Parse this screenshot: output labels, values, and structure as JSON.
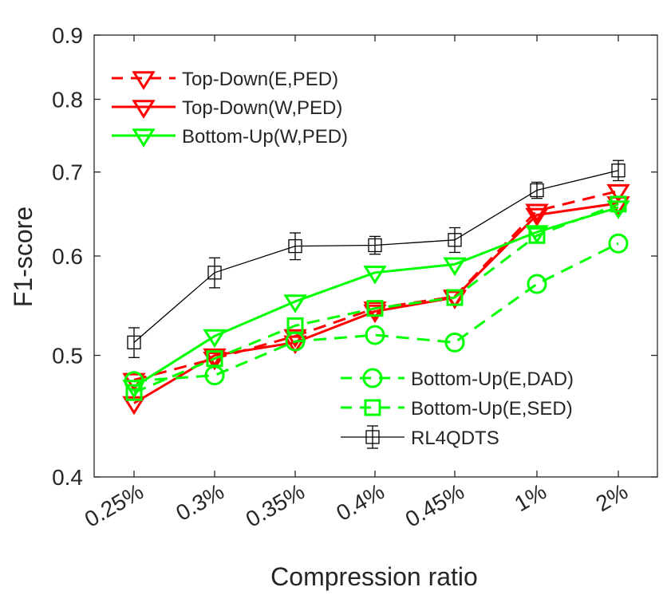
{
  "chart_data": {
    "type": "line",
    "yscale": "log",
    "xlabel": "Compression ratio",
    "ylabel": "F1-score",
    "categories": [
      "0.25%",
      "0.3%",
      "0.35%",
      "0.4%",
      "0.45%",
      "1%",
      "2%"
    ],
    "ylim": [
      0.4,
      0.9
    ],
    "yticks": [
      0.4,
      0.5,
      0.6,
      0.7,
      0.8,
      0.9
    ],
    "ytick_labels": [
      "0.4",
      "0.5",
      "0.6",
      "0.7",
      "0.8",
      "0.9"
    ],
    "series": [
      {
        "name": "Top-Down(E,PED)",
        "color": "#ff0000",
        "dash": "dashed",
        "marker": "triangle-down",
        "width": "thick",
        "values": [
          0.478,
          0.497,
          0.518,
          0.545,
          0.557,
          0.652,
          0.676
        ]
      },
      {
        "name": "Top-Down(W,PED)",
        "color": "#ff0000",
        "dash": "solid",
        "marker": "triangle-down",
        "width": "thick",
        "values": [
          0.458,
          0.5,
          0.512,
          0.542,
          0.556,
          0.647,
          0.661
        ]
      },
      {
        "name": "Bottom-Up(W,PED)",
        "color": "#00ff00",
        "dash": "solid",
        "marker": "triangle-down",
        "width": "thick",
        "values": [
          0.472,
          0.518,
          0.552,
          0.582,
          0.591,
          0.627,
          0.656
        ]
      },
      {
        "name": "Bottom-Up(E,DAD)",
        "color": "#00ff00",
        "dash": "dashed",
        "marker": "circle",
        "width": "thick",
        "values": [
          0.477,
          0.482,
          0.513,
          0.519,
          0.512,
          0.57,
          0.614
        ]
      },
      {
        "name": "Bottom-Up(E,SED)",
        "color": "#00ff00",
        "dash": "dashed",
        "marker": "square",
        "width": "thick",
        "values": [
          0.467,
          0.497,
          0.528,
          0.545,
          0.556,
          0.623,
          0.66
        ]
      },
      {
        "name": "RL4QDTS",
        "color": "#000000",
        "dash": "solid",
        "marker": "square",
        "width": "thin",
        "values": [
          0.512,
          0.582,
          0.611,
          0.612,
          0.618,
          0.677,
          0.702
        ],
        "errors": [
          0.014,
          0.016,
          0.015,
          0.01,
          0.014,
          0.01,
          0.013
        ]
      }
    ],
    "legends": [
      {
        "location": "top-left",
        "entries": [
          0,
          1,
          2
        ]
      },
      {
        "location": "bottom-right",
        "entries": [
          3,
          4,
          5
        ]
      }
    ],
    "grid": false
  }
}
